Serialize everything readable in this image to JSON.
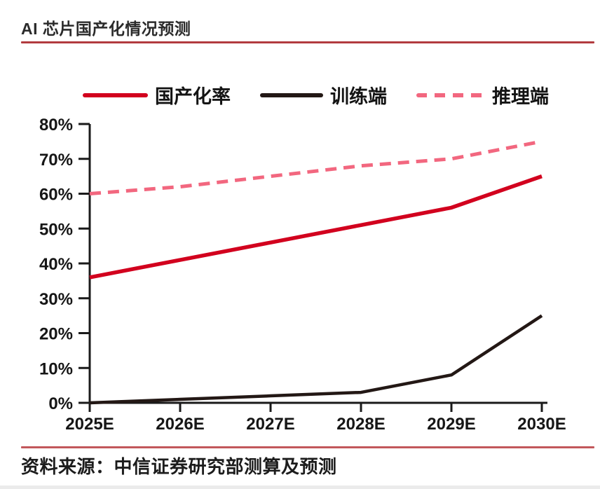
{
  "header": {
    "title": "AI 芯片国产化情况预测"
  },
  "legend": {
    "items": [
      {
        "label": "国产化率",
        "color": "#d2001e",
        "style": "solid"
      },
      {
        "label": "训练端",
        "color": "#231815",
        "style": "solid"
      },
      {
        "label": "推理端",
        "color": "#f2677f",
        "style": "dashed"
      }
    ]
  },
  "chart_data": {
    "type": "line",
    "title": "AI 芯片国产化情况预测",
    "categories": [
      "2025E",
      "2026E",
      "2027E",
      "2028E",
      "2029E",
      "2030E"
    ],
    "series": [
      {
        "name": "国产化率",
        "color": "#d2001e",
        "dash": false,
        "width": 5.5,
        "values": [
          36,
          41,
          46,
          51,
          56,
          65
        ]
      },
      {
        "name": "训练端",
        "color": "#231815",
        "dash": false,
        "width": 4.5,
        "values": [
          0,
          1,
          2,
          3,
          8,
          25
        ]
      },
      {
        "name": "推理端",
        "color": "#f2677f",
        "dash": true,
        "width": 5,
        "values": [
          60,
          62,
          65,
          68,
          70,
          75
        ]
      }
    ],
    "xlabel": "",
    "ylabel": "",
    "ylim": [
      0,
      80
    ],
    "yticks": [
      "0%",
      "10%",
      "20%",
      "30%",
      "40%",
      "50%",
      "60%",
      "70%",
      "80%"
    ],
    "grid": false,
    "legend_position": "top"
  },
  "source": {
    "text": "资料来源：中信证券研究部测算及预测"
  },
  "colors": {
    "accent_red": "#d2001e",
    "inference_pink": "#f2677f",
    "training_black": "#231815",
    "header_rule_red": "#b23b3f",
    "footer_rule_red": "#c2575b",
    "axis_black": "#1a1a1a"
  }
}
